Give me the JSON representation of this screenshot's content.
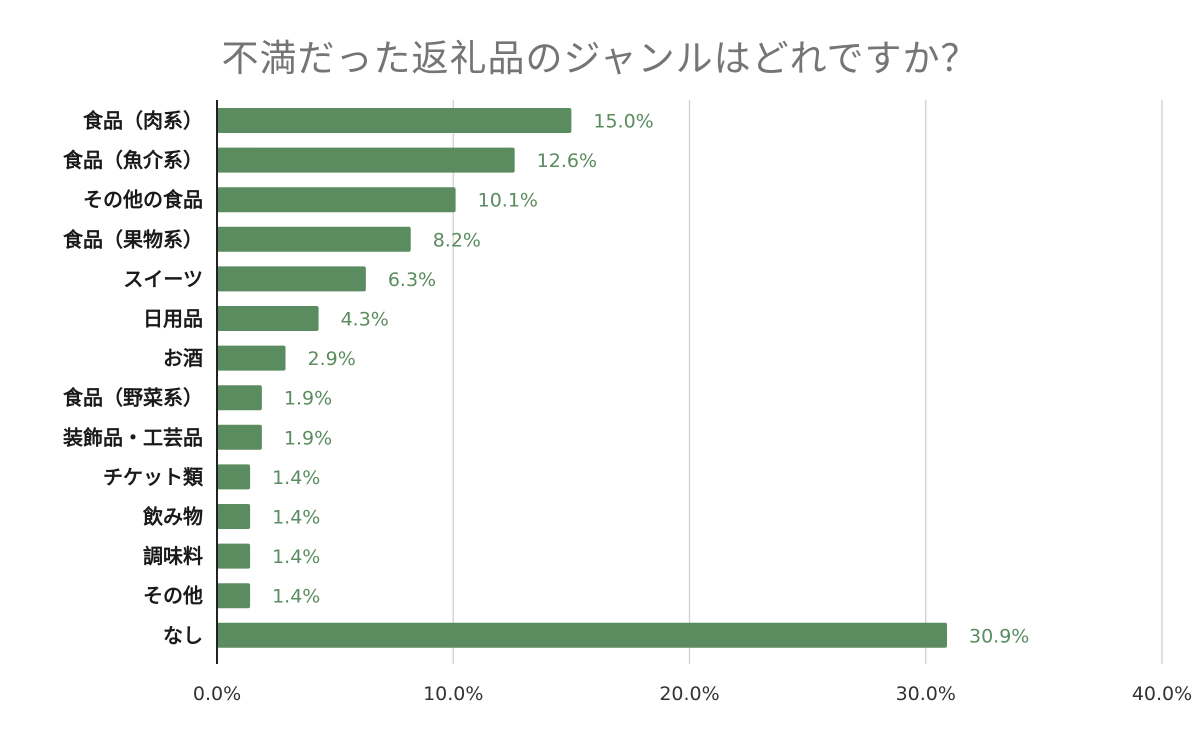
{
  "chart_data": {
    "type": "bar",
    "orientation": "horizontal",
    "title": "不満だった返礼品のジャンルはどれですか？",
    "xlabel": "",
    "ylabel": "",
    "categories": [
      "食品（肉系）",
      "食品（魚介系）",
      "その他の食品",
      "食品（果物系）",
      "スイーツ",
      "日用品",
      "お酒",
      "食品（野菜系）",
      "装飾品・工芸品",
      "チケット類",
      "飲み物",
      "調味料",
      "その他",
      "なし"
    ],
    "values": [
      15.0,
      12.6,
      10.1,
      8.2,
      6.3,
      4.3,
      2.9,
      1.9,
      1.9,
      1.4,
      1.4,
      1.4,
      1.4,
      30.9
    ],
    "value_labels": [
      "15.0%",
      "12.6%",
      "10.1%",
      "8.2%",
      "6.3%",
      "4.3%",
      "2.9%",
      "1.9%",
      "1.9%",
      "1.4%",
      "1.4%",
      "1.4%",
      "1.4%",
      "30.9%"
    ],
    "xlim": [
      0,
      40
    ],
    "x_ticks": [
      "0.0%",
      "10.0%",
      "20.0%",
      "30.0%",
      "40.0%"
    ],
    "grid": true,
    "legend": "none",
    "colors": {
      "bar": "#5b8c5f",
      "value_label": "#5b8c5f",
      "title": "#757575",
      "category_label": "#1a1a1a",
      "tick_label": "#333333",
      "grid": "#d0d0d0",
      "axis": "#222222"
    }
  }
}
